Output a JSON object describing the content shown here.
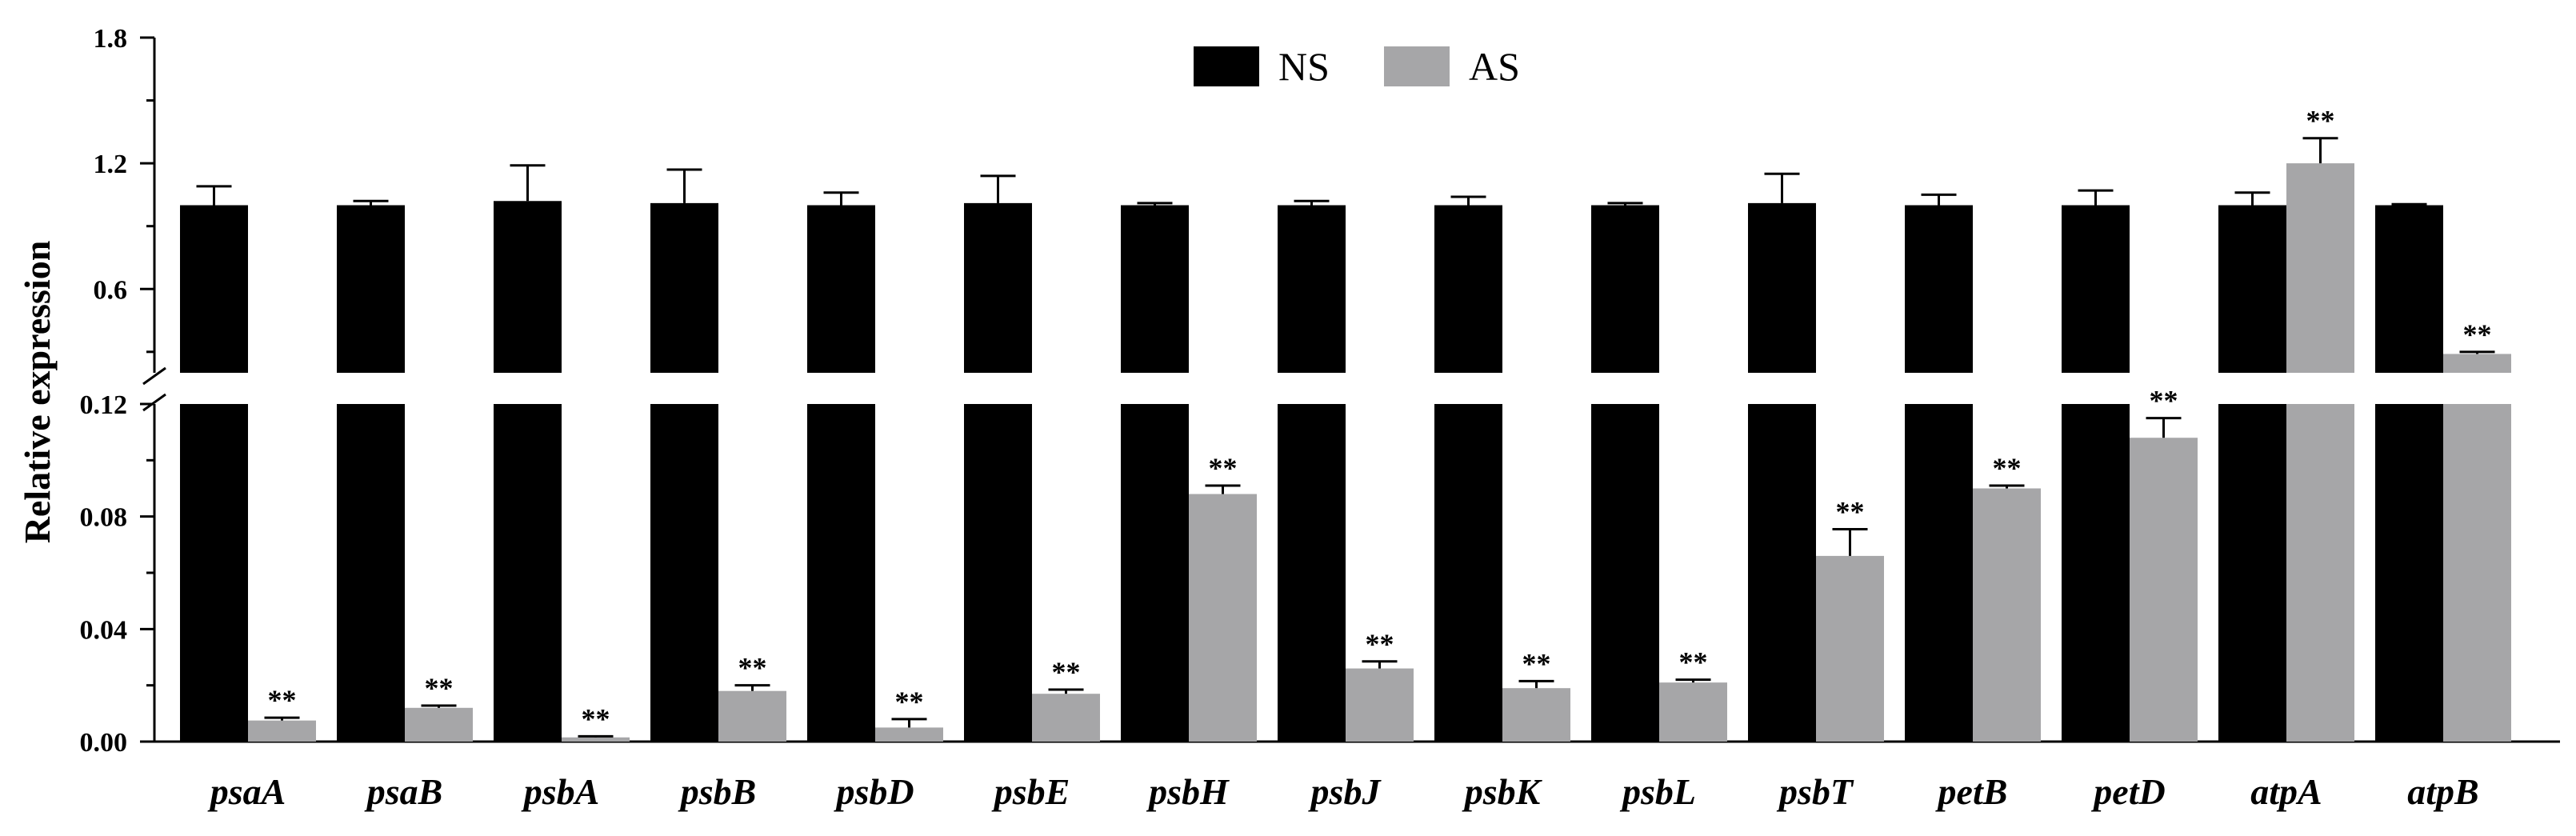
{
  "chart_data": {
    "type": "bar",
    "title": "",
    "xlabel": "",
    "ylabel": "Relative expression",
    "axis_break": true,
    "lower_range": [
      0,
      0.12
    ],
    "upper_range": [
      0.2,
      1.8
    ],
    "lower_ticks": [
      "0.00",
      "0.04",
      "0.08",
      "0.12"
    ],
    "upper_ticks": [
      "0.6",
      "1.2",
      "1.8"
    ],
    "lower_tick_values": [
      0,
      0.04,
      0.08,
      0.12
    ],
    "upper_tick_values": [
      0.6,
      1.2,
      1.8
    ],
    "legend_position": "top-center",
    "categories": [
      "psaA",
      "psaB",
      "psbA",
      "psbB",
      "psbD",
      "psbE",
      "psbH",
      "psbJ",
      "psbK",
      "psbL",
      "psbT",
      "petB",
      "petD",
      "atpA",
      "atpB"
    ],
    "series": [
      {
        "name": "NS",
        "color": "#000000",
        "values": [
          1.0,
          1.0,
          1.02,
          1.01,
          1.0,
          1.01,
          1.0,
          1.0,
          1.0,
          1.0,
          1.01,
          1.0,
          1.0,
          1.0,
          1.0
        ],
        "errors": [
          0.09,
          0.02,
          0.17,
          0.16,
          0.06,
          0.13,
          0.01,
          0.02,
          0.04,
          0.01,
          0.14,
          0.05,
          0.07,
          0.06,
          0.005
        ]
      },
      {
        "name": "AS",
        "color": "#a6a6a8",
        "values": [
          0.0075,
          0.012,
          0.0015,
          0.018,
          0.005,
          0.017,
          0.088,
          0.026,
          0.019,
          0.021,
          0.066,
          0.09,
          0.108,
          1.2,
          0.29
        ],
        "errors": [
          0.001,
          0.0008,
          0.0004,
          0.002,
          0.003,
          0.0015,
          0.003,
          0.0025,
          0.0025,
          0.001,
          0.0095,
          0.001,
          0.007,
          0.12,
          0.01
        ]
      }
    ],
    "annotations": {
      "label": "**",
      "series": "AS",
      "categories": [
        "psaA",
        "psaB",
        "psbA",
        "psbB",
        "psbD",
        "psbE",
        "psbH",
        "psbJ",
        "psbK",
        "psbL",
        "psbT",
        "petB",
        "petD",
        "atpA",
        "atpB"
      ]
    }
  }
}
